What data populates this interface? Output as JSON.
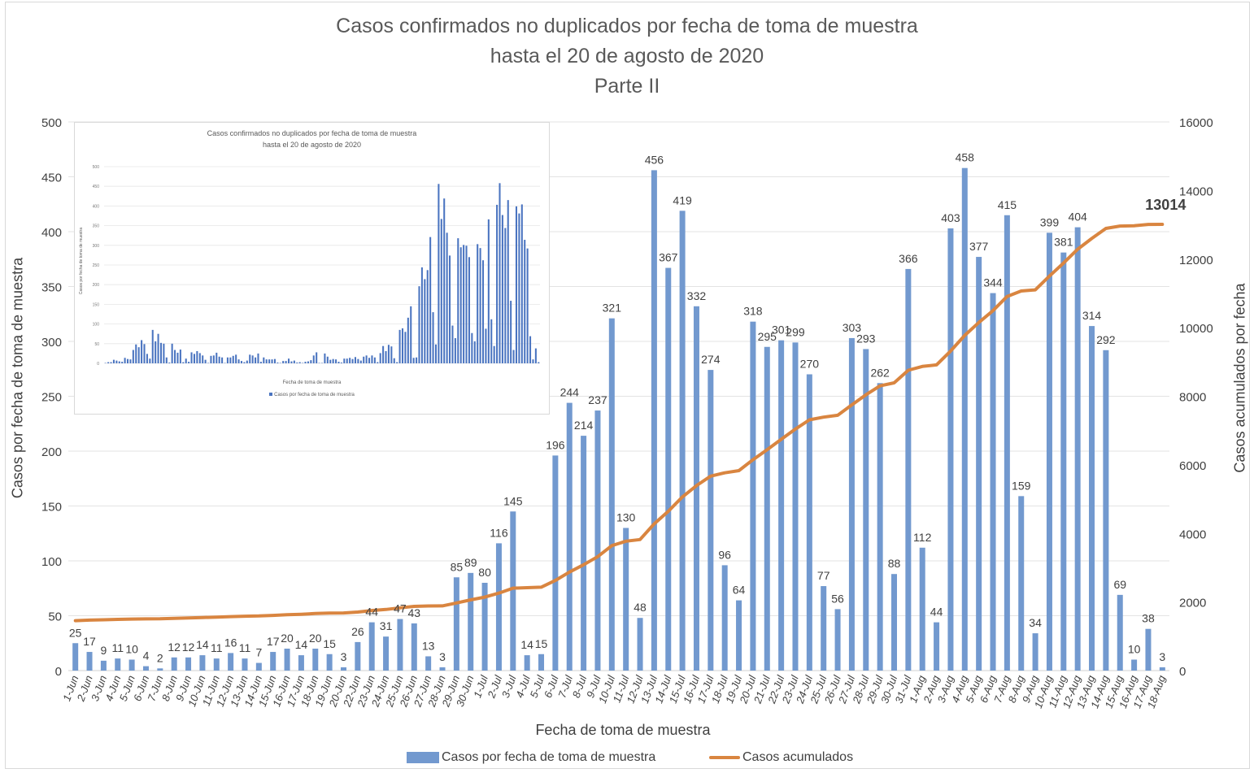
{
  "chart_data": {
    "type": "bar+line",
    "title": "Casos confirmados no duplicados por fecha de toma de muestra",
    "subtitle": "hasta el 20 de agosto de 2020",
    "subtitle2": "Parte II",
    "xlabel": "Fecha de toma de muestra",
    "ylabel_left": "Casos por fecha de toma de muestra",
    "ylabel_right": "Casos acumulados por fecha",
    "ylim_left": [
      0,
      500
    ],
    "yticks_left": [
      "0",
      "50",
      "100",
      "150",
      "200",
      "250",
      "300",
      "350",
      "400",
      "450",
      "500"
    ],
    "ylim_right": [
      0,
      16000
    ],
    "yticks_right": [
      "0",
      "2000",
      "4000",
      "6000",
      "8000",
      "10000",
      "12000",
      "14000",
      "16000"
    ],
    "grid": true,
    "legend_position": "bottom",
    "colors": {
      "bar": "#7299cf",
      "line": "#d98540"
    },
    "categories": [
      "1-Jun",
      "2-Jun",
      "3-Jun",
      "4-Jun",
      "5-Jun",
      "6-Jun",
      "7-Jun",
      "8-Jun",
      "9-Jun",
      "10-Jun",
      "11-Jun",
      "12-Jun",
      "13-Jun",
      "14-Jun",
      "15-Jun",
      "16-Jun",
      "17-Jun",
      "18-Jun",
      "19-Jun",
      "20-Jun",
      "22-Jun",
      "23-Jun",
      "24-Jun",
      "25-Jun",
      "26-Jun",
      "27-Jun",
      "28-Jun",
      "29-Jun",
      "30-Jun",
      "1-Jul",
      "2-Jul",
      "3-Jul",
      "4-Jul",
      "5-Jul",
      "6-Jul",
      "7-Jul",
      "8-Jul",
      "9-Jul",
      "10-Jul",
      "11-Jul",
      "12-Jul",
      "13-Jul",
      "14-Jul",
      "15-Jul",
      "16-Jul",
      "17-Jul",
      "18-Jul",
      "19-Jul",
      "20-Jul",
      "21-Jul",
      "22-Jul",
      "23-Jul",
      "24-Jul",
      "25-Jul",
      "26-Jul",
      "27-Jul",
      "28-Jul",
      "29-Jul",
      "30-Jul",
      "31-Jul",
      "1-Aug",
      "2-Aug",
      "3-Aug",
      "4-Aug",
      "5-Aug",
      "6-Aug",
      "7-Aug",
      "8-Aug",
      "9-Aug",
      "10-Aug",
      "11-Aug",
      "12-Aug",
      "13-Aug",
      "14-Aug",
      "15-Aug",
      "16-Aug",
      "17-Aug",
      "18-Aug"
    ],
    "series": [
      {
        "name": "Casos por fecha de toma de muestra",
        "type": "bar",
        "axis": "left",
        "values": [
          25,
          17,
          9,
          11,
          10,
          4,
          2,
          12,
          12,
          14,
          11,
          16,
          11,
          7,
          17,
          20,
          14,
          20,
          15,
          3,
          26,
          44,
          31,
          47,
          43,
          13,
          3,
          85,
          89,
          80,
          116,
          145,
          14,
          15,
          196,
          244,
          214,
          237,
          321,
          130,
          48,
          456,
          367,
          419,
          332,
          274,
          96,
          64,
          318,
          295,
          301,
          299,
          270,
          77,
          56,
          303,
          293,
          262,
          88,
          366,
          112,
          44,
          403,
          458,
          377,
          344,
          415,
          159,
          34,
          399,
          381,
          404,
          314,
          292,
          69,
          10,
          38,
          3
        ]
      },
      {
        "name": "Casos acumulados",
        "type": "line",
        "axis": "right",
        "values": [
          1456,
          1473,
          1482,
          1493,
          1503,
          1507,
          1509,
          1521,
          1533,
          1547,
          1558,
          1574,
          1585,
          1592,
          1609,
          1629,
          1643,
          1663,
          1678,
          1681,
          1707,
          1751,
          1782,
          1829,
          1872,
          1885,
          1888,
          1973,
          2062,
          2142,
          2258,
          2403,
          2417,
          2432,
          2628,
          2872,
          3086,
          3323,
          3644,
          3774,
          3822,
          4278,
          4645,
          5064,
          5396,
          5670,
          5766,
          5830,
          6148,
          6443,
          6744,
          7043,
          7313,
          7390,
          7446,
          7749,
          8042,
          8304,
          8392,
          8758,
          8870,
          8914,
          9317,
          9775,
          10152,
          10496,
          10911,
          11070,
          11104,
          11503,
          11884,
          12288,
          12602,
          12894,
          12963,
          12973,
          13011,
          13014
        ]
      }
    ],
    "annotations": [
      {
        "label": "13014",
        "category": "18-Aug",
        "series": "Casos acumulados"
      }
    ],
    "inset": {
      "title": "Casos confirmados no duplicados por fecha de toma de muestra",
      "subtitle": "hasta el 20 de agosto de 2020",
      "xlabel": "Fecha de toma de muestra",
      "ylabel": "Casos por fecha de toma de muestra",
      "ylim": [
        0,
        500
      ],
      "yticks": [
        "0",
        "50",
        "100",
        "150",
        "200",
        "250",
        "300",
        "350",
        "400",
        "450",
        "500"
      ],
      "legend": "Casos por fecha de toma de muestra",
      "values_approx": [
        1,
        3,
        3,
        9,
        7,
        5,
        4,
        14,
        11,
        10,
        34,
        48,
        41,
        59,
        49,
        24,
        12,
        85,
        56,
        75,
        52,
        50,
        15,
        2,
        50,
        34,
        27,
        35,
        3,
        12,
        4,
        28,
        24,
        31,
        26,
        20,
        9,
        1,
        19,
        20,
        27,
        17,
        15,
        1,
        15,
        15,
        19,
        22,
        10,
        6,
        3,
        7,
        22,
        20,
        15,
        25,
        4,
        15,
        10,
        10,
        10,
        11,
        2,
        1,
        6,
        6,
        12,
        5,
        7,
        2,
        3,
        1,
        4,
        5,
        8,
        20,
        28,
        1,
        1,
        25,
        17,
        9,
        11,
        10,
        4,
        2,
        12,
        12,
        14,
        11,
        16,
        11,
        7,
        17,
        20,
        14,
        20,
        15,
        3,
        26,
        44,
        31,
        47,
        43,
        13,
        3,
        85,
        89,
        80,
        116,
        145,
        14,
        15,
        196,
        244,
        214,
        237,
        321,
        130,
        48,
        456,
        367,
        419,
        332,
        274,
        96,
        64,
        318,
        295,
        301,
        299,
        270,
        77,
        56,
        303,
        293,
        262,
        88,
        366,
        112,
        44,
        403,
        458,
        377,
        344,
        415,
        159,
        34,
        399,
        381,
        404,
        314,
        292,
        69,
        10,
        38,
        3
      ]
    }
  }
}
